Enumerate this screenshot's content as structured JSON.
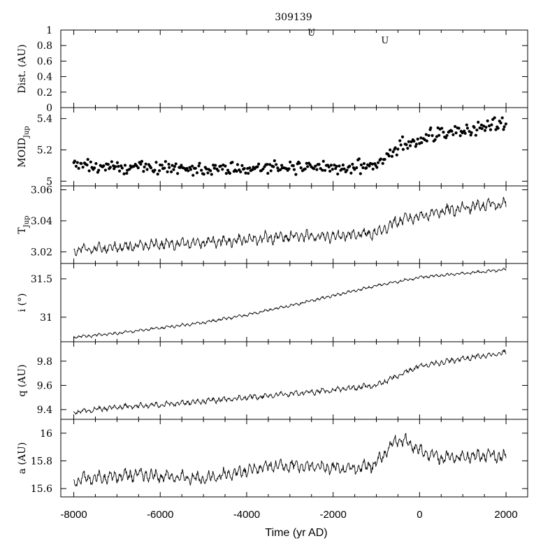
{
  "chart_data": {
    "type": "line",
    "title": "309139",
    "xlabel": "Time (yr AD)",
    "xlim": [
      -8300,
      2500
    ],
    "x_ticks": [
      -8000,
      -6000,
      -4000,
      -2000,
      0,
      2000
    ],
    "x_tick_labels": [
      "-8000",
      "-6000",
      "-4000",
      "-2000",
      "0",
      "2000"
    ],
    "encounter_markers": [
      {
        "label": "U",
        "x": -2500,
        "y": 1.0
      },
      {
        "label": "U",
        "x": -800,
        "y": 0.9
      }
    ],
    "panels": [
      {
        "id": "dist",
        "ylabel": "Dist. (AU)",
        "ylim": [
          0,
          1
        ],
        "y_ticks": [
          0,
          0.2,
          0.4,
          0.6,
          0.8,
          1
        ],
        "y_tick_labels": [
          "0",
          "0.2",
          "0.4",
          "0.6",
          "0.8",
          "1"
        ],
        "type": "scatter",
        "x": [],
        "y": []
      },
      {
        "id": "moid",
        "ylabel_main": "MOID",
        "ylabel_sub": "Jup",
        "ylim": [
          4.97,
          5.47
        ],
        "y_ticks": [
          5,
          5.2,
          5.4
        ],
        "y_tick_labels": [
          "5",
          "5.2",
          "5.4"
        ],
        "type": "scatter",
        "x": [
          -8000,
          -7750,
          -7500,
          -7250,
          -7000,
          -6750,
          -6500,
          -6250,
          -6000,
          -5750,
          -5500,
          -5250,
          -5000,
          -4750,
          -4500,
          -4250,
          -4000,
          -3750,
          -3500,
          -3250,
          -3000,
          -2750,
          -2500,
          -2250,
          -2000,
          -1750,
          -1500,
          -1250,
          -1000,
          -750,
          -500,
          -250,
          0,
          250,
          500,
          750,
          1000,
          1250,
          1500,
          1750,
          2000
        ],
        "y": [
          5.1,
          5.11,
          5.1,
          5.09,
          5.1,
          5.09,
          5.1,
          5.09,
          5.08,
          5.08,
          5.09,
          5.08,
          5.08,
          5.08,
          5.08,
          5.09,
          5.08,
          5.08,
          5.09,
          5.09,
          5.09,
          5.1,
          5.09,
          5.09,
          5.09,
          5.08,
          5.09,
          5.09,
          5.1,
          5.17,
          5.22,
          5.25,
          5.27,
          5.29,
          5.3,
          5.32,
          5.33,
          5.33,
          5.35,
          5.36,
          5.36
        ]
      },
      {
        "id": "tjup",
        "ylabel_main": "T",
        "ylabel_sub": "Jup",
        "ylim": [
          3.0125,
          3.0625
        ],
        "y_ticks": [
          3.02,
          3.04,
          3.06
        ],
        "y_tick_labels": [
          "3.02",
          "3.04",
          "3.06"
        ],
        "type": "line",
        "x": [
          -8000,
          -7500,
          -7000,
          -6500,
          -6000,
          -5500,
          -5000,
          -4500,
          -4000,
          -3500,
          -3000,
          -2500,
          -2000,
          -1500,
          -1000,
          -750,
          -500,
          0,
          500,
          1000,
          1500,
          2000
        ],
        "y": [
          3.021,
          3.022,
          3.023,
          3.024,
          3.025,
          3.025,
          3.026,
          3.027,
          3.028,
          3.029,
          3.03,
          3.03,
          3.03,
          3.031,
          3.032,
          3.036,
          3.04,
          3.043,
          3.046,
          3.048,
          3.05,
          3.051
        ]
      },
      {
        "id": "incl",
        "ylabel": "i (°)",
        "ylim": [
          30.68,
          31.7
        ],
        "y_ticks": [
          31,
          31.5
        ],
        "y_tick_labels": [
          "31",
          "31.5"
        ],
        "type": "line",
        "x": [
          -8000,
          -7000,
          -6000,
          -5000,
          -4000,
          -3000,
          -2000,
          -1000,
          0,
          1000,
          2000
        ],
        "y": [
          30.74,
          30.79,
          30.86,
          30.93,
          31.03,
          31.15,
          31.28,
          31.41,
          31.52,
          31.57,
          31.62
        ]
      },
      {
        "id": "q",
        "ylabel": "q (AU)",
        "ylim": [
          9.32,
          9.96
        ],
        "y_ticks": [
          9.4,
          9.6,
          9.8
        ],
        "y_tick_labels": [
          "9.4",
          "9.6",
          "9.8"
        ],
        "type": "line",
        "x": [
          -8000,
          -7000,
          -6000,
          -5000,
          -4000,
          -3000,
          -2000,
          -1000,
          -500,
          0,
          1000,
          2000
        ],
        "y": [
          9.38,
          9.42,
          9.44,
          9.47,
          9.5,
          9.53,
          9.56,
          9.6,
          9.68,
          9.76,
          9.82,
          9.87
        ]
      },
      {
        "id": "a",
        "ylabel": "a (AU)",
        "ylim": [
          15.54,
          16.1
        ],
        "y_ticks": [
          15.6,
          15.8,
          16
        ],
        "y_tick_labels": [
          "15.6",
          "15.8",
          "16"
        ],
        "type": "line",
        "x": [
          -8000,
          -7500,
          -7000,
          -6500,
          -6000,
          -5500,
          -5000,
          -4500,
          -4000,
          -3500,
          -3000,
          -2500,
          -2000,
          -1500,
          -1000,
          -750,
          -500,
          -300,
          0,
          500,
          1000,
          1500,
          2000
        ],
        "y": [
          15.66,
          15.68,
          15.69,
          15.7,
          15.69,
          15.68,
          15.67,
          15.7,
          15.73,
          15.76,
          15.77,
          15.76,
          15.75,
          15.74,
          15.78,
          15.88,
          15.96,
          15.94,
          15.87,
          15.82,
          15.83,
          15.84,
          15.83
        ]
      }
    ]
  }
}
